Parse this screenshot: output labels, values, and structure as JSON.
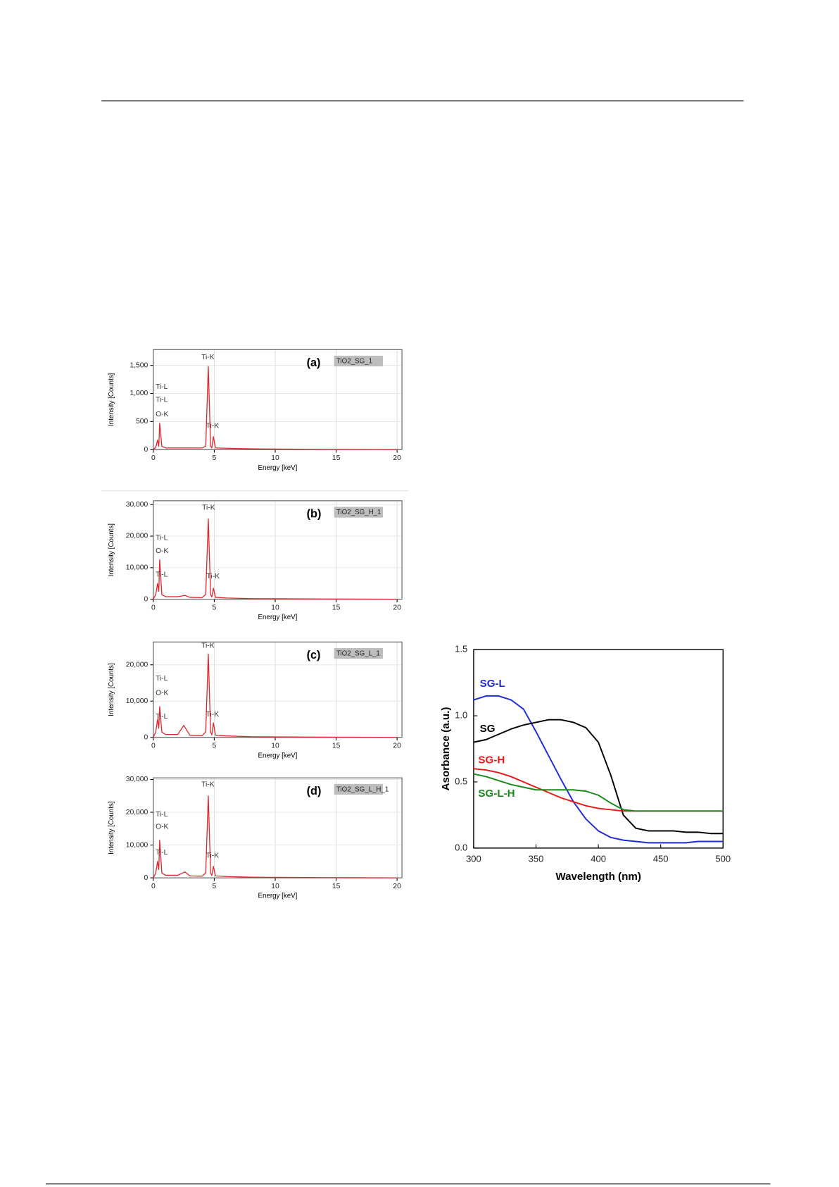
{
  "chart_data": [
    {
      "type": "line",
      "panel_label": "(a)",
      "sample_label": "TiO2_SG_1",
      "x_label": "Energy [keV]",
      "y_label": "Intensity [Counts]",
      "peak_labels": [
        "Ti-K",
        "Ti-L",
        "Ti-L",
        "O-K",
        "Ti-K"
      ],
      "color": "#e0262b",
      "grid": true,
      "x": [
        0,
        0.2,
        0.35,
        0.45,
        0.52,
        0.7,
        1,
        2,
        3,
        4,
        4.3,
        4.51,
        4.7,
        4.8,
        4.93,
        5.1,
        6,
        8,
        10,
        14,
        20
      ],
      "values": [
        0,
        40,
        170,
        60,
        470,
        60,
        30,
        30,
        30,
        30,
        60,
        1480,
        60,
        30,
        230,
        30,
        25,
        15,
        10,
        5,
        0
      ],
      "xlim": [
        0,
        20.4
      ],
      "xticks": [
        0,
        5,
        10,
        15,
        20
      ],
      "ylim": [
        0,
        1780
      ],
      "yticks": [
        0,
        500,
        {
          "value": 1000,
          "label": "1,000"
        },
        {
          "value": 1500,
          "label": "1,500"
        }
      ]
    },
    {
      "type": "line",
      "panel_label": "(b)",
      "sample_label": "TiO2_SG_H_1",
      "x_label": "Energy [keV]",
      "y_label": "Intensity [Counts]",
      "peak_labels": [
        "Ti-K",
        "Ti-L",
        "O-K",
        "Ti-L",
        "Ti-K"
      ],
      "color": "#e0262b",
      "grid": true,
      "x": [
        0,
        0.2,
        0.35,
        0.45,
        0.52,
        0.7,
        1,
        2,
        2.6,
        3,
        4,
        4.3,
        4.51,
        4.7,
        4.8,
        4.93,
        5.1,
        6,
        8,
        10,
        14,
        20
      ],
      "values": [
        0,
        1500,
        5000,
        2500,
        12500,
        1500,
        800,
        800,
        1200,
        600,
        500,
        1500,
        25500,
        1500,
        700,
        3500,
        600,
        400,
        200,
        150,
        80,
        0
      ],
      "xlim": [
        0,
        20.4
      ],
      "xticks": [
        0,
        5,
        10,
        15,
        20
      ],
      "ylim": [
        0,
        31200
      ],
      "yticks": [
        0,
        {
          "value": 10000,
          "label": "10,000"
        },
        {
          "value": 20000,
          "label": "20,000"
        },
        {
          "value": 30000,
          "label": "30,000"
        }
      ]
    },
    {
      "type": "line",
      "panel_label": "(c)",
      "sample_label": "TiO2_SG_L_1",
      "x_label": "Energy [keV]",
      "y_label": "Intensity [Counts]",
      "peak_labels": [
        "Ti-K",
        "Ti-L",
        "O-K",
        "Ti-L",
        "Ti-K"
      ],
      "color": "#e0262b",
      "grid": true,
      "x": [
        0,
        0.2,
        0.35,
        0.45,
        0.52,
        0.7,
        1,
        2,
        2.5,
        3,
        4,
        4.3,
        4.51,
        4.7,
        4.8,
        4.93,
        5.1,
        6,
        8,
        10,
        14,
        20
      ],
      "values": [
        0,
        1500,
        5000,
        2500,
        8500,
        1500,
        800,
        800,
        3300,
        600,
        500,
        1500,
        23000,
        1500,
        700,
        4000,
        600,
        400,
        200,
        150,
        80,
        0
      ],
      "xlim": [
        0,
        20.4
      ],
      "xticks": [
        0,
        5,
        10,
        15,
        20
      ],
      "ylim": [
        0,
        26300
      ],
      "yticks": [
        0,
        {
          "value": 10000,
          "label": "10,000"
        },
        {
          "value": 20000,
          "label": "20,000"
        }
      ]
    },
    {
      "type": "line",
      "panel_label": "(d)",
      "sample_label": "TiO2_SG_L_H_1",
      "x_label": "Energy [keV]",
      "y_label": "Intensity [Counts]",
      "peak_labels": [
        "Ti-K",
        "Ti-L",
        "O-K",
        "Ti-L",
        "Ti-K"
      ],
      "color": "#e0262b",
      "grid": true,
      "x": [
        0,
        0.2,
        0.35,
        0.45,
        0.52,
        0.7,
        1,
        2,
        2.6,
        3,
        4,
        4.3,
        4.51,
        4.7,
        4.8,
        4.93,
        5.1,
        6,
        8,
        10,
        14,
        20
      ],
      "values": [
        0,
        1500,
        5000,
        2500,
        11500,
        1500,
        800,
        800,
        1800,
        600,
        500,
        1500,
        25000,
        1500,
        700,
        3500,
        600,
        400,
        200,
        150,
        80,
        0
      ],
      "xlim": [
        0,
        20.4
      ],
      "xticks": [
        0,
        5,
        10,
        15,
        20
      ],
      "ylim": [
        0,
        30500
      ],
      "yticks": [
        0,
        {
          "value": 10000,
          "label": "10,000"
        },
        {
          "value": 20000,
          "label": "20,000"
        },
        {
          "value": 30000,
          "label": "30,000"
        }
      ]
    },
    {
      "type": "line",
      "x_label": "Wavelength (nm)",
      "y_label": "Asorbance (a.u.)",
      "grid": false,
      "x": [
        300,
        310,
        320,
        330,
        340,
        350,
        360,
        370,
        380,
        390,
        400,
        410,
        420,
        430,
        440,
        450,
        460,
        470,
        480,
        490,
        500
      ],
      "series": [
        {
          "name": "SG-L",
          "color": "#1f2bd6",
          "values": [
            1.12,
            1.15,
            1.15,
            1.12,
            1.05,
            0.88,
            0.7,
            0.52,
            0.35,
            0.22,
            0.13,
            0.08,
            0.06,
            0.05,
            0.04,
            0.04,
            0.04,
            0.04,
            0.05,
            0.05,
            0.05
          ]
        },
        {
          "name": "SG",
          "color": "#000000",
          "values": [
            0.8,
            0.82,
            0.86,
            0.9,
            0.93,
            0.95,
            0.97,
            0.97,
            0.95,
            0.91,
            0.8,
            0.55,
            0.25,
            0.15,
            0.13,
            0.13,
            0.13,
            0.12,
            0.12,
            0.11,
            0.11
          ]
        },
        {
          "name": "SG-H",
          "color": "#e81818",
          "values": [
            0.6,
            0.59,
            0.57,
            0.54,
            0.5,
            0.46,
            0.42,
            0.38,
            0.35,
            0.32,
            0.3,
            0.29,
            0.28,
            0.28,
            0.28,
            0.28,
            0.28,
            0.28,
            0.28,
            0.28,
            0.28
          ]
        },
        {
          "name": "SG-L-H",
          "color": "#1a8a1a",
          "values": [
            0.56,
            0.54,
            0.51,
            0.48,
            0.46,
            0.44,
            0.44,
            0.44,
            0.44,
            0.43,
            0.4,
            0.34,
            0.29,
            0.28,
            0.28,
            0.28,
            0.28,
            0.28,
            0.28,
            0.28,
            0.28
          ]
        }
      ],
      "xlim": [
        300,
        500
      ],
      "xticks": [
        300,
        350,
        400,
        450,
        500
      ],
      "ylim": [
        0,
        1.5
      ],
      "yticks": [
        {
          "value": 0,
          "label": "0.0"
        },
        0.5,
        {
          "value": 1,
          "label": "1.0"
        },
        {
          "value": 1.5,
          "label": "1.5"
        }
      ]
    }
  ]
}
